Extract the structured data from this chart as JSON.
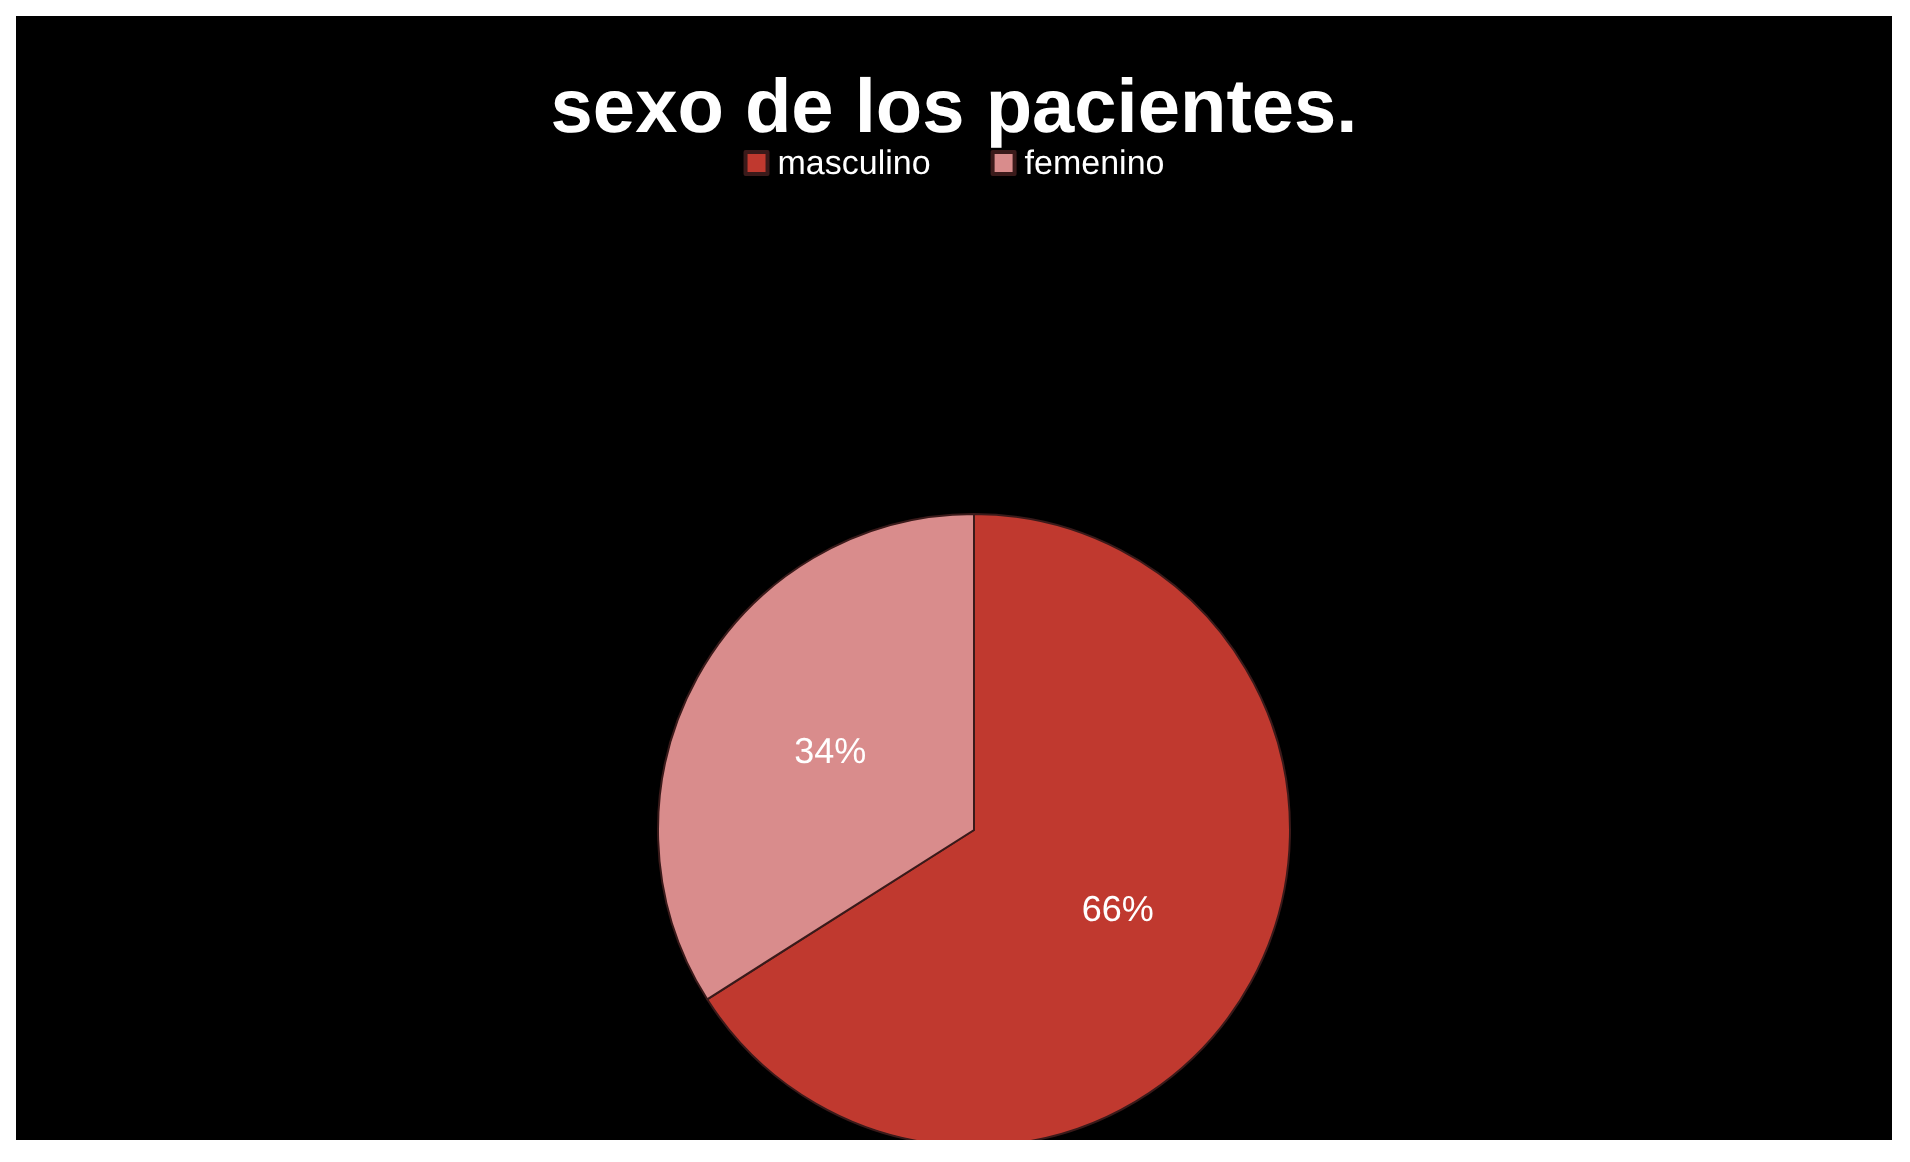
{
  "chart_data": {
    "type": "pie",
    "title": "sexo de los pacientes.",
    "categories": [
      "masculino",
      "femenino"
    ],
    "values": [
      66,
      34
    ],
    "value_labels": [
      "66%",
      "34%"
    ],
    "colors": [
      "#c0392f",
      "#d98c8c"
    ],
    "legend": "top"
  }
}
